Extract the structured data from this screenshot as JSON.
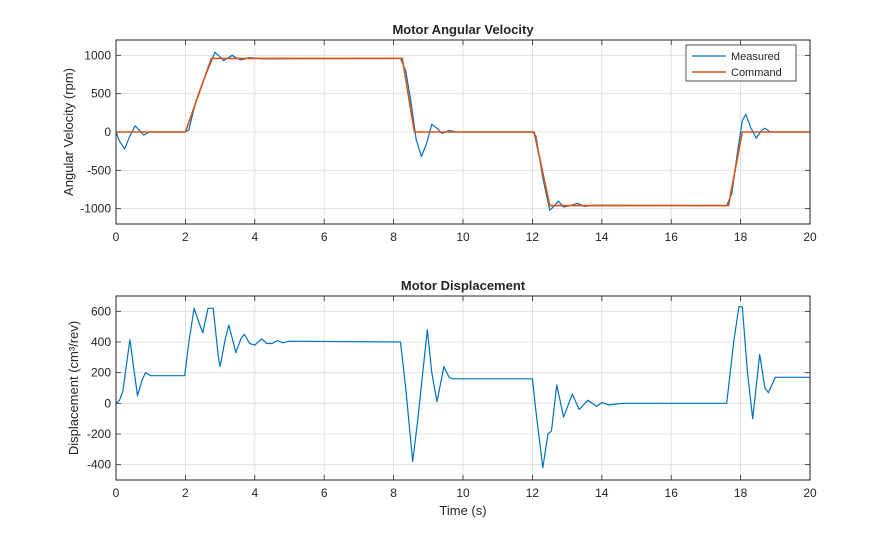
{
  "chart_data": [
    {
      "type": "line",
      "title": "Motor Angular Velocity",
      "xlabel": "",
      "ylabel": "Angular Velocity (rpm)",
      "xlim": [
        0,
        20
      ],
      "ylim": [
        -1200,
        1200
      ],
      "xticks": [
        0,
        2,
        4,
        6,
        8,
        10,
        12,
        14,
        16,
        18,
        20
      ],
      "yticks": [
        -1000,
        -500,
        0,
        500,
        1000
      ],
      "grid": true,
      "legend": "top-right",
      "series": [
        {
          "name": "Measured",
          "color": "#0072BD",
          "x": [
            0,
            0.1,
            0.25,
            0.4,
            0.55,
            0.7,
            0.8,
            0.95,
            1.2,
            2.0,
            2.1,
            2.3,
            2.5,
            2.7,
            2.85,
            3.0,
            3.1,
            3.35,
            3.5,
            3.6,
            3.85,
            4.2,
            8.2,
            8.35,
            8.5,
            8.65,
            8.8,
            8.95,
            9.1,
            9.25,
            9.4,
            9.6,
            9.8,
            12.0,
            12.1,
            12.3,
            12.5,
            12.6,
            12.75,
            12.9,
            13.1,
            13.3,
            13.5,
            13.8,
            17.6,
            17.75,
            17.9,
            18.05,
            18.15,
            18.3,
            18.45,
            18.6,
            18.7,
            18.85,
            20
          ],
          "y": [
            0,
            -120,
            -220,
            -50,
            80,
            10,
            -40,
            0,
            0,
            0,
            30,
            400,
            650,
            870,
            1040,
            980,
            930,
            1000,
            960,
            940,
            970,
            955,
            960,
            800,
            400,
            -100,
            -320,
            -150,
            100,
            50,
            -20,
            20,
            0,
            0,
            -50,
            -600,
            -1020,
            -980,
            -900,
            -980,
            -960,
            -930,
            -970,
            -955,
            -960,
            -800,
            -300,
            150,
            230,
            50,
            -80,
            20,
            50,
            0,
            0
          ]
        },
        {
          "name": "Command",
          "color": "#D95319",
          "x": [
            0,
            2,
            2.75,
            8.25,
            8.6,
            12.05,
            12.5,
            17.65,
            18.05,
            20
          ],
          "y": [
            0,
            0,
            960,
            960,
            0,
            0,
            -960,
            -960,
            0,
            0
          ]
        }
      ]
    },
    {
      "type": "line",
      "title": "Motor Displacement",
      "xlabel": "Time (s)",
      "ylabel": "Displacement  (cm³/rev)",
      "xlim": [
        0,
        20
      ],
      "ylim": [
        -500,
        700
      ],
      "xticks": [
        0,
        2,
        4,
        6,
        8,
        10,
        12,
        14,
        16,
        18,
        20
      ],
      "yticks": [
        -400,
        -200,
        0,
        200,
        400,
        600
      ],
      "grid": true,
      "series": [
        {
          "color": "#0072BD",
          "x": [
            0,
            0.1,
            0.2,
            0.3,
            0.4,
            0.5,
            0.62,
            0.75,
            0.85,
            1.0,
            1.2,
            1.98,
            2.1,
            2.25,
            2.4,
            2.5,
            2.65,
            2.8,
            2.95,
            3.0,
            3.15,
            3.25,
            3.4,
            3.45,
            3.6,
            3.7,
            3.85,
            4.0,
            4.2,
            4.35,
            4.5,
            4.65,
            4.8,
            5.0,
            8.2,
            8.35,
            8.55,
            8.7,
            8.97,
            9.1,
            9.25,
            9.45,
            9.6,
            9.7,
            12.0,
            12.1,
            12.3,
            12.45,
            12.55,
            12.7,
            12.9,
            13.15,
            13.35,
            13.6,
            13.85,
            14.0,
            14.2,
            14.4,
            14.6,
            17.6,
            17.8,
            17.95,
            18.05,
            18.2,
            18.35,
            18.55,
            18.7,
            18.8,
            19.0,
            20
          ],
          "y": [
            0,
            20,
            80,
            250,
            415,
            250,
            50,
            150,
            200,
            180,
            180,
            180,
            400,
            620,
            520,
            460,
            620,
            620,
            300,
            240,
            420,
            510,
            380,
            330,
            420,
            450,
            390,
            380,
            420,
            390,
            390,
            410,
            395,
            405,
            400,
            100,
            -380,
            -100,
            480,
            200,
            10,
            240,
            170,
            160,
            160,
            -50,
            -420,
            -200,
            -180,
            120,
            -90,
            60,
            -40,
            20,
            -20,
            5,
            -10,
            -5,
            0,
            0,
            400,
            630,
            630,
            200,
            -100,
            320,
            100,
            70,
            170,
            170
          ]
        }
      ]
    }
  ]
}
